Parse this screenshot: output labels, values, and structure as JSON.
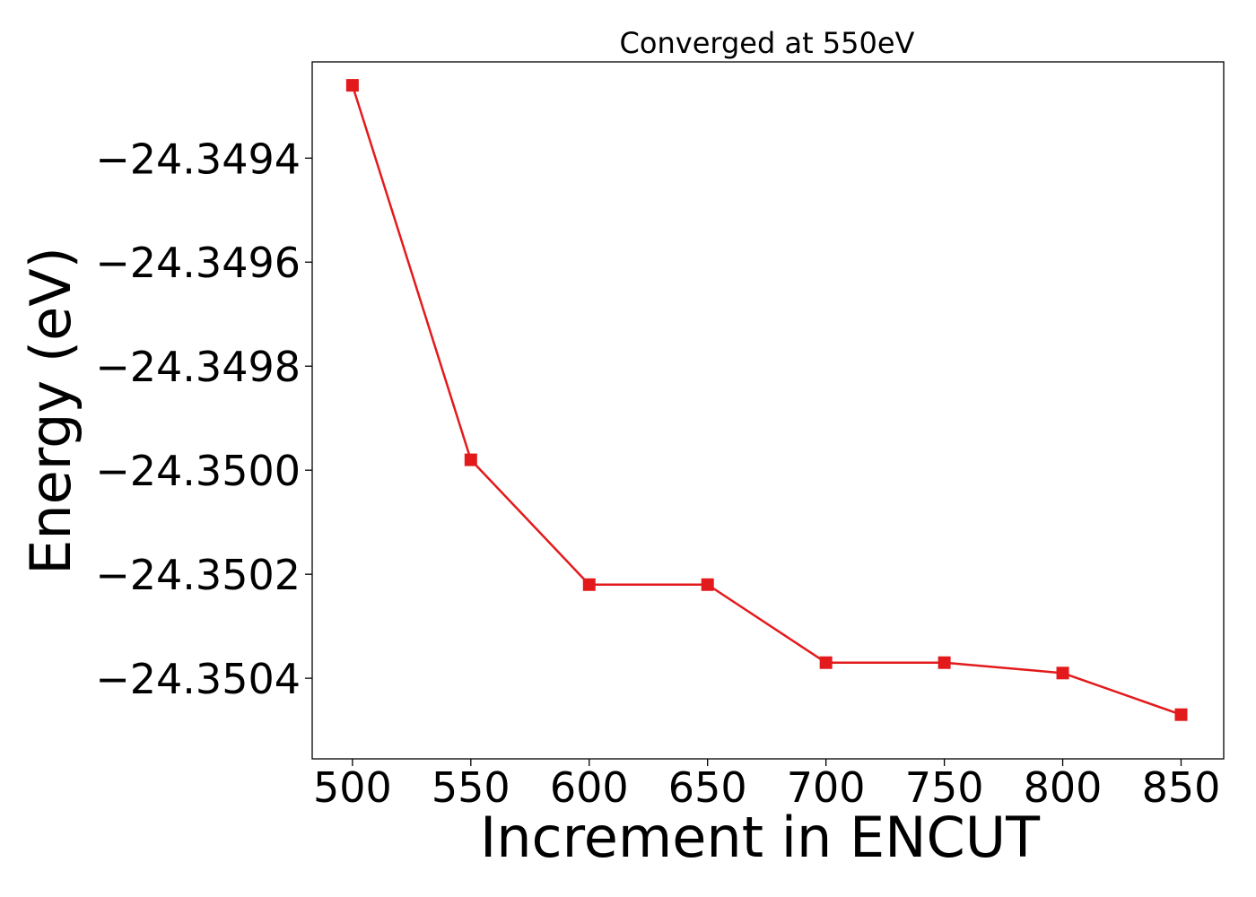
{
  "chart_data": {
    "type": "line",
    "title": "Converged at 550eV",
    "xlabel": "Increment in ENCUT",
    "ylabel": "Energy (eV)",
    "x": [
      500,
      550,
      600,
      650,
      700,
      750,
      800,
      850
    ],
    "series": [
      {
        "values": [
          -24.34926,
          -24.34998,
          -24.35022,
          -24.35022,
          -24.35037,
          -24.35037,
          -24.35039,
          -24.35047
        ],
        "color": "#e31a1c",
        "marker": "square"
      }
    ],
    "xticks": [
      500,
      550,
      600,
      650,
      700,
      750,
      800,
      850
    ],
    "xtick_labels": [
      "500",
      "550",
      "600",
      "650",
      "700",
      "750",
      "800",
      "850"
    ],
    "yticks": [
      -24.3494,
      -24.3496,
      -24.3498,
      -24.35,
      -24.3502,
      -24.3504
    ],
    "ytick_labels": [
      "−24.3494",
      "−24.3496",
      "−24.3498",
      "−24.3500",
      "−24.3502",
      "−24.3504"
    ],
    "xlim": [
      483,
      868
    ],
    "ylim": [
      -24.350555,
      -24.349215
    ],
    "grid": false,
    "legend": "none"
  }
}
